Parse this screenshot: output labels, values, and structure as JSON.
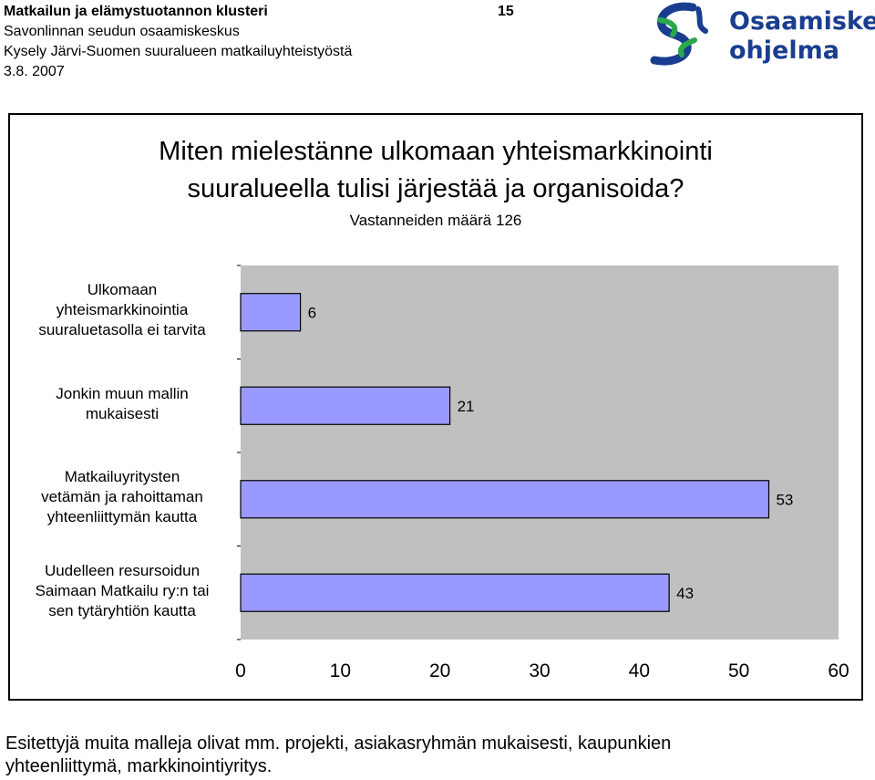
{
  "header": {
    "line1": "Matkailun ja elämystuotannon klusteri",
    "line2": "Savonlinnan seudun osaamiskeskus",
    "line3": "Kysely Järvi-Suomen suuralueen matkailuyhteistyöstä",
    "date": "3.8. 2007",
    "page_number": "15"
  },
  "logo": {
    "line1": "Osaamiskeskus-",
    "line2": "ohjelma",
    "icon": "osaamiskeskus-logo-icon",
    "colors": {
      "blue": "#1a3d8f",
      "green": "#2aa84a"
    }
  },
  "chart_data": {
    "type": "bar",
    "orientation": "horizontal",
    "title": "Miten mielestänne ulkomaan yhteismarkkinointi suuralueella tulisi järjestää ja organisoida?",
    "subtitle": "Vastanneiden määrä 126",
    "categories": [
      "Ulkomaan yhteismarkkinointia suuraluetasolla ei tarvita",
      "Jonkin muun mallin mukaisesti",
      "Matkailuyritysten vetämän ja rahoittaman yhteenliittymän kautta",
      "Uudelleen resursoidun Saimaan Matkailu ry:n tai sen tytäryhtiön kautta"
    ],
    "category_lines": [
      [
        "Ulkomaan",
        "yhteismarkkinointia",
        "suuraluetasolla ei tarvita"
      ],
      [
        "Jonkin muun mallin",
        "mukaisesti"
      ],
      [
        "Matkailuyritysten",
        "vetämän ja rahoittaman",
        "yhteenliittymän kautta"
      ],
      [
        "Uudelleen resursoidun",
        "Saimaan Matkailu ry:n tai",
        "sen tytäryhtiön kautta"
      ]
    ],
    "values": [
      6,
      21,
      53,
      43
    ],
    "xlim": [
      0,
      60
    ],
    "xticks": [
      0,
      10,
      20,
      30,
      40,
      50,
      60
    ],
    "grid": false,
    "legend": "none",
    "colors": {
      "bar": "#9999ff",
      "plot_bg": "#c0c0c0",
      "bar_edge": "#000000"
    }
  },
  "footnote": {
    "line1": "Esitettyjä muita malleja olivat mm. projekti, asiakasryhmän mukaisesti, kaupunkien",
    "line2": "yhteenliittymä, markkinointiyritys."
  }
}
